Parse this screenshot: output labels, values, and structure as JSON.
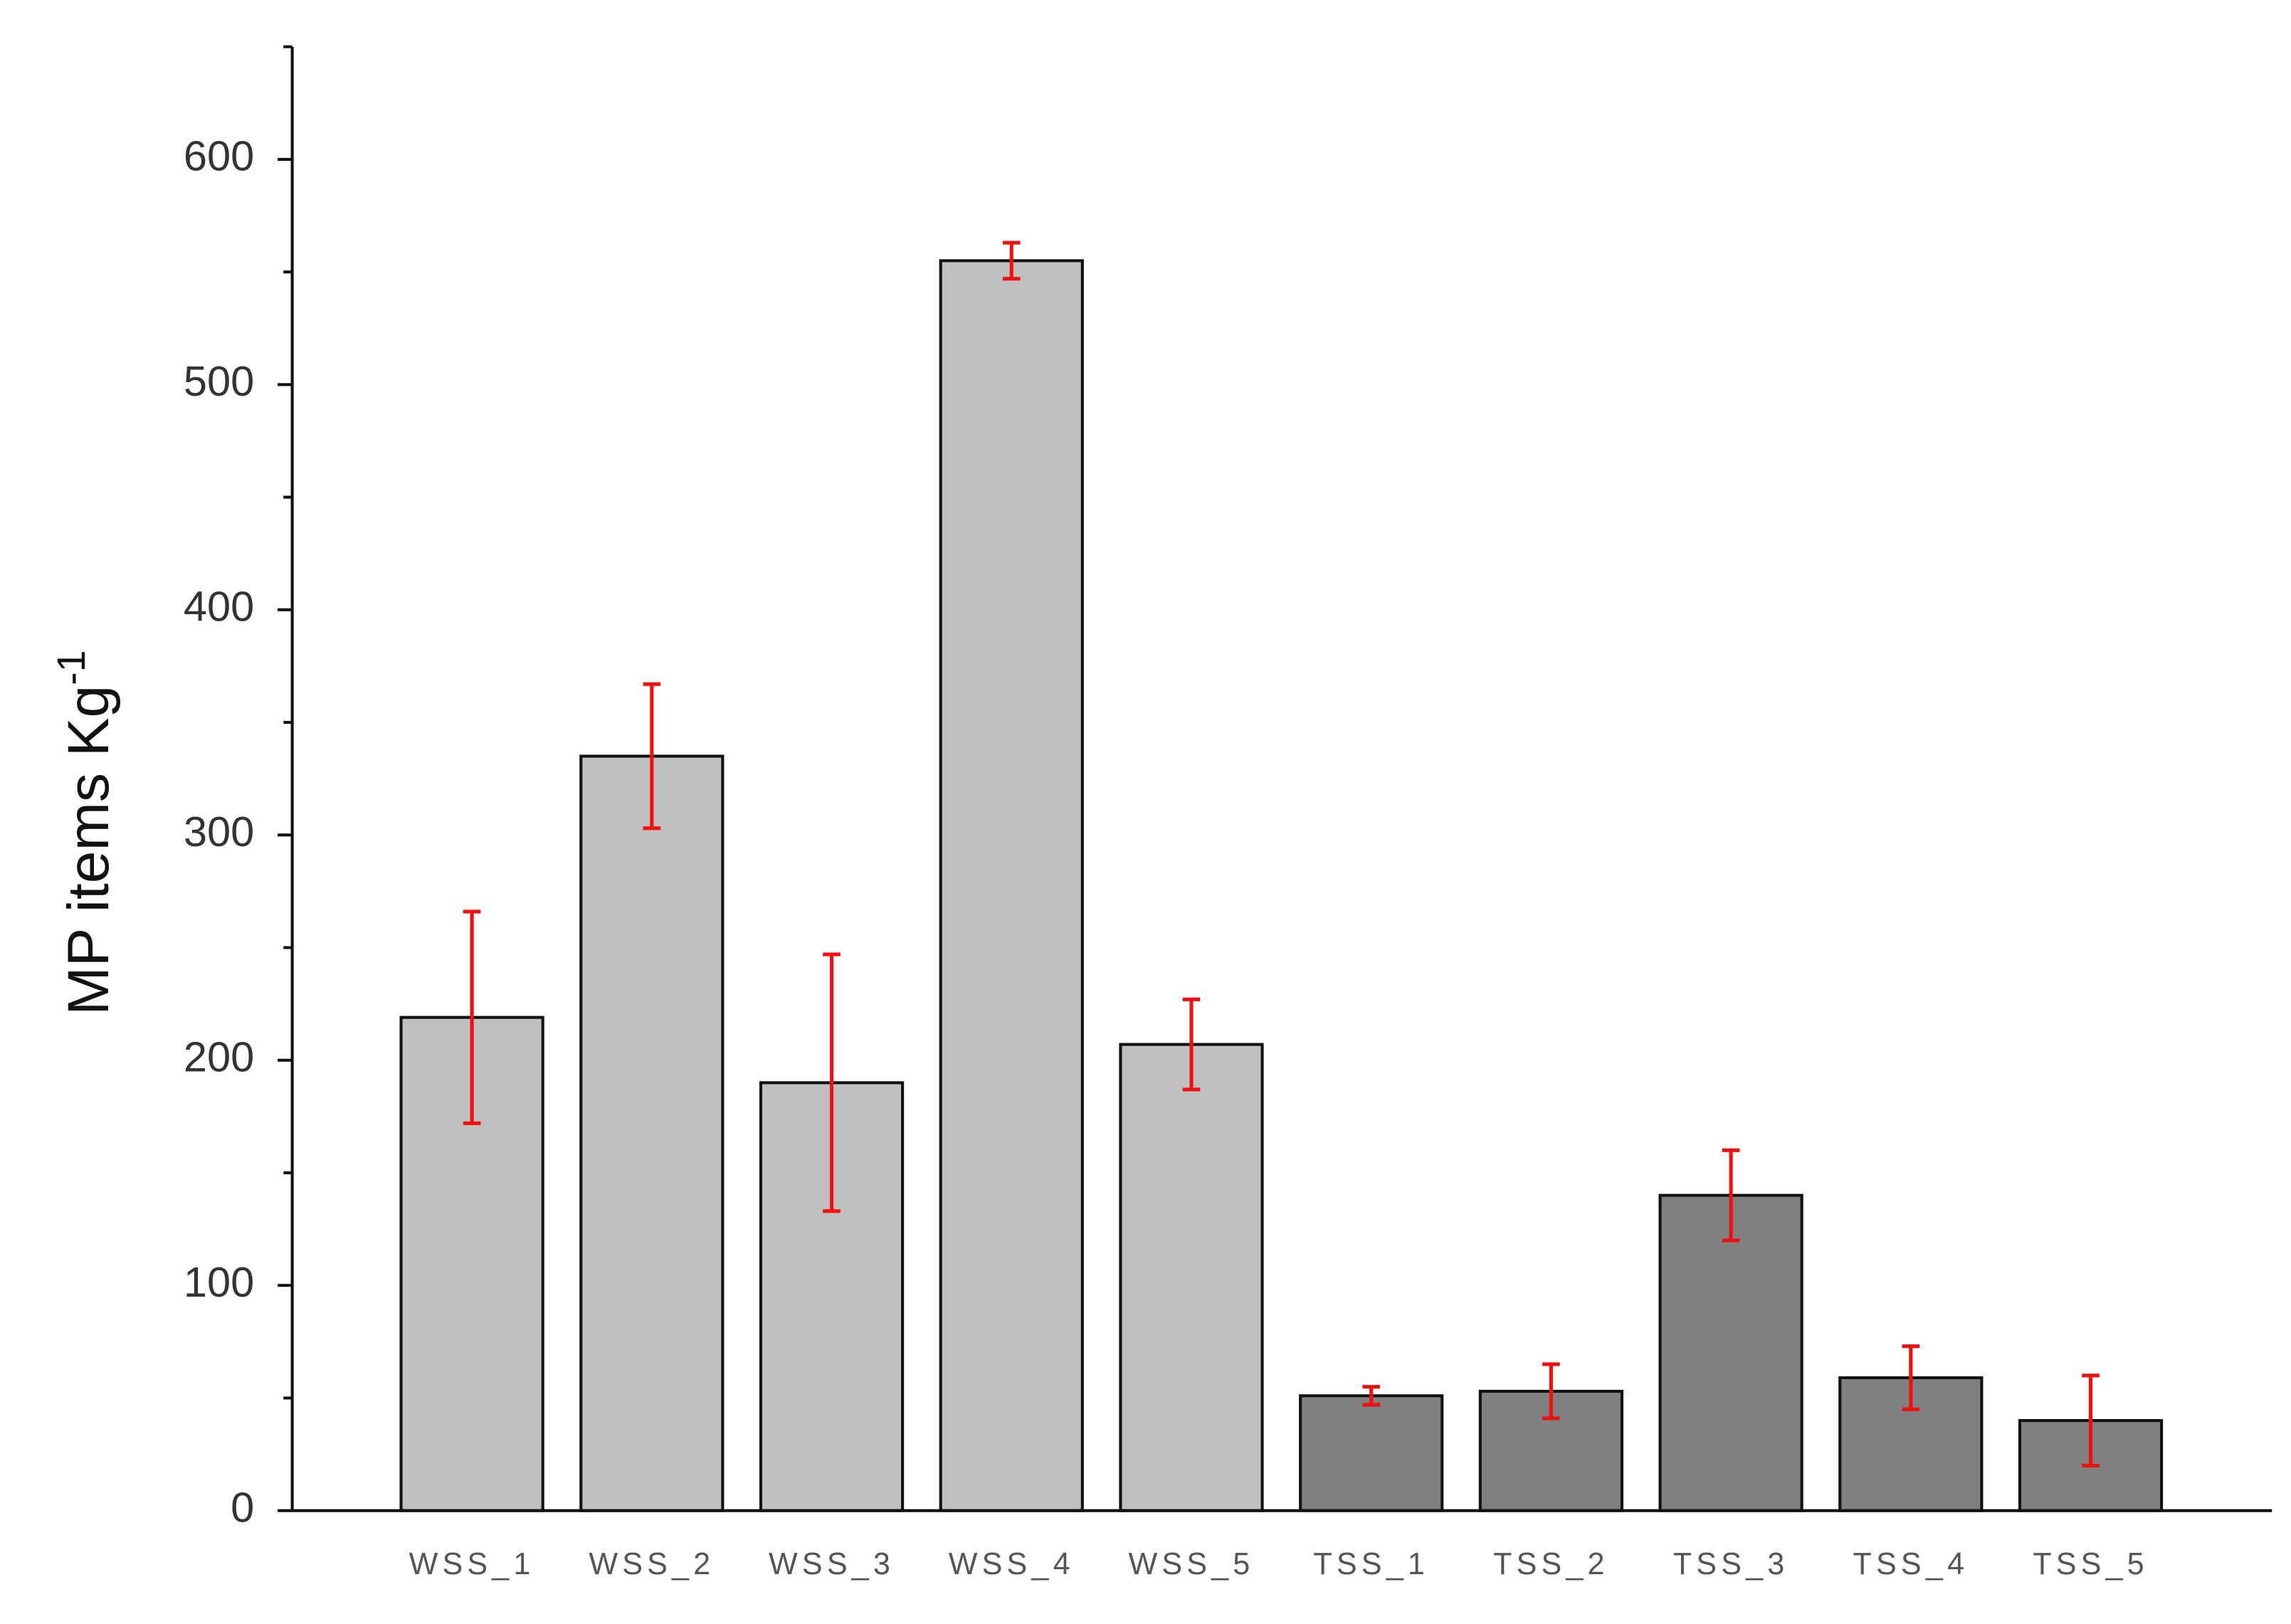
{
  "chart_data": {
    "type": "bar",
    "ylabel": "MP items Kg",
    "ylabel_superscript": "-1",
    "categories": [
      "WSS_1",
      "WSS_2",
      "WSS_3",
      "WSS_4",
      "WSS_5",
      "TSS_1",
      "TSS_2",
      "TSS_3",
      "TSS_4",
      "TSS_5"
    ],
    "values": [
      219,
      335,
      190,
      555,
      207,
      51,
      53,
      140,
      59,
      40
    ],
    "errors": [
      47,
      32,
      57,
      8,
      20,
      4,
      12,
      20,
      14,
      20
    ],
    "colors": [
      "#c0c0c0",
      "#c0c0c0",
      "#c0c0c0",
      "#c0c0c0",
      "#c0c0c0",
      "#808080",
      "#808080",
      "#808080",
      "#808080",
      "#808080"
    ],
    "error_color": "#ee1111",
    "ylim": [
      0,
      650
    ],
    "yticks": [
      0,
      100,
      200,
      300,
      400,
      500,
      600
    ],
    "yticks_minor": [
      50,
      150,
      250,
      350,
      450,
      550,
      650
    ],
    "grid": false
  }
}
